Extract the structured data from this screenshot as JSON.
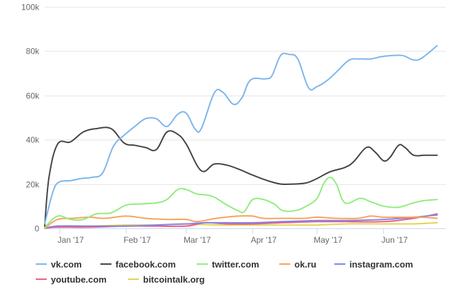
{
  "chart_data": {
    "type": "line",
    "title": "",
    "xlabel": "",
    "ylabel": "",
    "x_ticks": [
      "Jan '17",
      "Feb '17",
      "Mar '17",
      "Apr '17",
      "May '17",
      "Jun '17"
    ],
    "x_tick_dates": [
      "2017-01-01",
      "2017-02-01",
      "2017-03-01",
      "2017-04-01",
      "2017-05-01",
      "2017-06-01"
    ],
    "x_range": [
      "2016-12-25",
      "2017-06-30"
    ],
    "ylim": [
      0,
      100000
    ],
    "y_ticks": [
      {
        "value": 0,
        "label": "0"
      },
      {
        "value": 20000,
        "label": "20k"
      },
      {
        "value": 40000,
        "label": "40k"
      },
      {
        "value": 60000,
        "label": "60k"
      },
      {
        "value": 80000,
        "label": "80k"
      },
      {
        "value": 100000,
        "label": "100k"
      }
    ],
    "grid": "horizontal",
    "legend_position": "bottom",
    "series": [
      {
        "name": "vk.com",
        "color": "#7cb5ec",
        "points": [
          [
            "2016-12-25",
            2000
          ],
          [
            "2016-12-29",
            17000
          ],
          [
            "2017-01-01",
            21000
          ],
          [
            "2017-01-06",
            21500
          ],
          [
            "2017-01-11",
            22500
          ],
          [
            "2017-01-16",
            23000
          ],
          [
            "2017-01-21",
            25000
          ],
          [
            "2017-01-26",
            37000
          ],
          [
            "2017-01-31",
            42000
          ],
          [
            "2017-02-05",
            46000
          ],
          [
            "2017-02-10",
            49500
          ],
          [
            "2017-02-15",
            49500
          ],
          [
            "2017-02-20",
            46000
          ],
          [
            "2017-02-25",
            51500
          ],
          [
            "2017-03-01",
            52000
          ],
          [
            "2017-03-05",
            45000
          ],
          [
            "2017-03-08",
            45000
          ],
          [
            "2017-03-14",
            61000
          ],
          [
            "2017-03-18",
            61500
          ],
          [
            "2017-03-23",
            56000
          ],
          [
            "2017-03-27",
            59000
          ],
          [
            "2017-03-31",
            67000
          ],
          [
            "2017-04-07",
            67500
          ],
          [
            "2017-04-10",
            69000
          ],
          [
            "2017-04-14",
            78000
          ],
          [
            "2017-04-18",
            78500
          ],
          [
            "2017-04-22",
            76500
          ],
          [
            "2017-04-27",
            63500
          ],
          [
            "2017-05-01",
            64000
          ],
          [
            "2017-05-06",
            67000
          ],
          [
            "2017-05-11",
            71500
          ],
          [
            "2017-05-16",
            76000
          ],
          [
            "2017-05-21",
            76500
          ],
          [
            "2017-05-26",
            76500
          ],
          [
            "2017-05-31",
            77500
          ],
          [
            "2017-06-05",
            78000
          ],
          [
            "2017-06-10",
            78000
          ],
          [
            "2017-06-15",
            76000
          ],
          [
            "2017-06-19",
            77000
          ],
          [
            "2017-06-26",
            82500
          ]
        ]
      },
      {
        "name": "facebook.com",
        "color": "#434348",
        "points": [
          [
            "2016-12-25",
            1000
          ],
          [
            "2016-12-27",
            23000
          ],
          [
            "2016-12-31",
            38000
          ],
          [
            "2017-01-06",
            39000
          ],
          [
            "2017-01-12",
            43500
          ],
          [
            "2017-01-18",
            45000
          ],
          [
            "2017-01-25",
            45000
          ],
          [
            "2017-01-31",
            38500
          ],
          [
            "2017-02-05",
            37500
          ],
          [
            "2017-02-10",
            36500
          ],
          [
            "2017-02-15",
            35500
          ],
          [
            "2017-02-20",
            43500
          ],
          [
            "2017-02-25",
            42500
          ],
          [
            "2017-03-01",
            38000
          ],
          [
            "2017-03-08",
            26000
          ],
          [
            "2017-03-14",
            29000
          ],
          [
            "2017-03-20",
            28500
          ],
          [
            "2017-03-26",
            26500
          ],
          [
            "2017-04-01",
            24000
          ],
          [
            "2017-04-08",
            21500
          ],
          [
            "2017-04-14",
            20000
          ],
          [
            "2017-04-20",
            20000
          ],
          [
            "2017-04-26",
            20500
          ],
          [
            "2017-05-01",
            22500
          ],
          [
            "2017-05-07",
            25500
          ],
          [
            "2017-05-14",
            27500
          ],
          [
            "2017-05-18",
            30000
          ],
          [
            "2017-05-24",
            36500
          ],
          [
            "2017-05-28",
            34500
          ],
          [
            "2017-06-01",
            30500
          ],
          [
            "2017-06-04",
            32000
          ],
          [
            "2017-06-08",
            37500
          ],
          [
            "2017-06-11",
            36500
          ],
          [
            "2017-06-15",
            33000
          ],
          [
            "2017-06-20",
            33000
          ],
          [
            "2017-06-26",
            33000
          ]
        ]
      },
      {
        "name": "twitter.com",
        "color": "#90ed7d",
        "points": [
          [
            "2016-12-25",
            500
          ],
          [
            "2016-12-31",
            5500
          ],
          [
            "2017-01-06",
            4000
          ],
          [
            "2017-01-12",
            4000
          ],
          [
            "2017-01-18",
            6500
          ],
          [
            "2017-01-25",
            7000
          ],
          [
            "2017-02-01",
            10500
          ],
          [
            "2017-02-08",
            11000
          ],
          [
            "2017-02-15",
            11500
          ],
          [
            "2017-02-20",
            13000
          ],
          [
            "2017-02-25",
            17500
          ],
          [
            "2017-03-01",
            17500
          ],
          [
            "2017-03-06",
            15500
          ],
          [
            "2017-03-13",
            14500
          ],
          [
            "2017-03-20",
            10500
          ],
          [
            "2017-03-25",
            8000
          ],
          [
            "2017-03-28",
            7500
          ],
          [
            "2017-04-01",
            13000
          ],
          [
            "2017-04-06",
            13000
          ],
          [
            "2017-04-11",
            11000
          ],
          [
            "2017-04-15",
            8000
          ],
          [
            "2017-04-21",
            8000
          ],
          [
            "2017-04-26",
            10000
          ],
          [
            "2017-05-01",
            13500
          ],
          [
            "2017-05-04",
            20000
          ],
          [
            "2017-05-07",
            23000
          ],
          [
            "2017-05-10",
            20000
          ],
          [
            "2017-05-14",
            11500
          ],
          [
            "2017-05-21",
            13500
          ],
          [
            "2017-05-26",
            12000
          ],
          [
            "2017-06-01",
            10000
          ],
          [
            "2017-06-08",
            9500
          ],
          [
            "2017-06-15",
            11500
          ],
          [
            "2017-06-20",
            12500
          ],
          [
            "2017-06-26",
            13000
          ]
        ]
      },
      {
        "name": "ok.ru",
        "color": "#f7a35c",
        "points": [
          [
            "2016-12-25",
            0
          ],
          [
            "2016-12-31",
            4000
          ],
          [
            "2017-01-07",
            4500
          ],
          [
            "2017-01-15",
            5000
          ],
          [
            "2017-01-22",
            4500
          ],
          [
            "2017-02-01",
            5500
          ],
          [
            "2017-02-10",
            4500
          ],
          [
            "2017-02-20",
            4000
          ],
          [
            "2017-03-01",
            4000
          ],
          [
            "2017-03-06",
            3000
          ],
          [
            "2017-03-15",
            4500
          ],
          [
            "2017-03-25",
            5500
          ],
          [
            "2017-04-01",
            5500
          ],
          [
            "2017-04-06",
            4500
          ],
          [
            "2017-04-15",
            4500
          ],
          [
            "2017-04-25",
            4500
          ],
          [
            "2017-05-01",
            5000
          ],
          [
            "2017-05-10",
            4500
          ],
          [
            "2017-05-20",
            4500
          ],
          [
            "2017-05-26",
            5500
          ],
          [
            "2017-06-01",
            5000
          ],
          [
            "2017-06-10",
            5000
          ],
          [
            "2017-06-18",
            5000
          ],
          [
            "2017-06-26",
            4500
          ]
        ]
      },
      {
        "name": "instagram.com",
        "color": "#8085e9",
        "points": [
          [
            "2016-12-25",
            0
          ],
          [
            "2016-12-31",
            1000
          ],
          [
            "2017-01-15",
            1000
          ],
          [
            "2017-02-01",
            1000
          ],
          [
            "2017-02-15",
            1500
          ],
          [
            "2017-03-01",
            2000
          ],
          [
            "2017-03-10",
            2500
          ],
          [
            "2017-03-20",
            2500
          ],
          [
            "2017-04-01",
            2500
          ],
          [
            "2017-04-15",
            3000
          ],
          [
            "2017-05-01",
            3500
          ],
          [
            "2017-05-15",
            3500
          ],
          [
            "2017-06-01",
            4000
          ],
          [
            "2017-06-15",
            5000
          ],
          [
            "2017-06-26",
            6000
          ]
        ]
      },
      {
        "name": "youtube.com",
        "color": "#f15c80",
        "points": [
          [
            "2016-12-25",
            0
          ],
          [
            "2016-12-31",
            500
          ],
          [
            "2017-01-15",
            500
          ],
          [
            "2017-02-01",
            1000
          ],
          [
            "2017-02-15",
            1000
          ],
          [
            "2017-03-01",
            1000
          ],
          [
            "2017-03-10",
            2500
          ],
          [
            "2017-03-20",
            2000
          ],
          [
            "2017-04-01",
            2000
          ],
          [
            "2017-04-15",
            2500
          ],
          [
            "2017-05-01",
            3000
          ],
          [
            "2017-05-15",
            3000
          ],
          [
            "2017-06-01",
            3000
          ],
          [
            "2017-06-15",
            4500
          ],
          [
            "2017-06-26",
            6500
          ]
        ]
      },
      {
        "name": "bitcointalk.org",
        "color": "#e4d354",
        "points": [
          [
            "2016-12-25",
            0
          ],
          [
            "2016-12-31",
            1000
          ],
          [
            "2017-01-15",
            1000
          ],
          [
            "2017-02-01",
            1500
          ],
          [
            "2017-02-15",
            1500
          ],
          [
            "2017-03-01",
            2000
          ],
          [
            "2017-03-15",
            1500
          ],
          [
            "2017-04-01",
            1500
          ],
          [
            "2017-04-15",
            1500
          ],
          [
            "2017-05-01",
            1500
          ],
          [
            "2017-05-15",
            2000
          ],
          [
            "2017-06-01",
            2000
          ],
          [
            "2017-06-15",
            2000
          ],
          [
            "2017-06-26",
            2500
          ]
        ]
      }
    ]
  }
}
